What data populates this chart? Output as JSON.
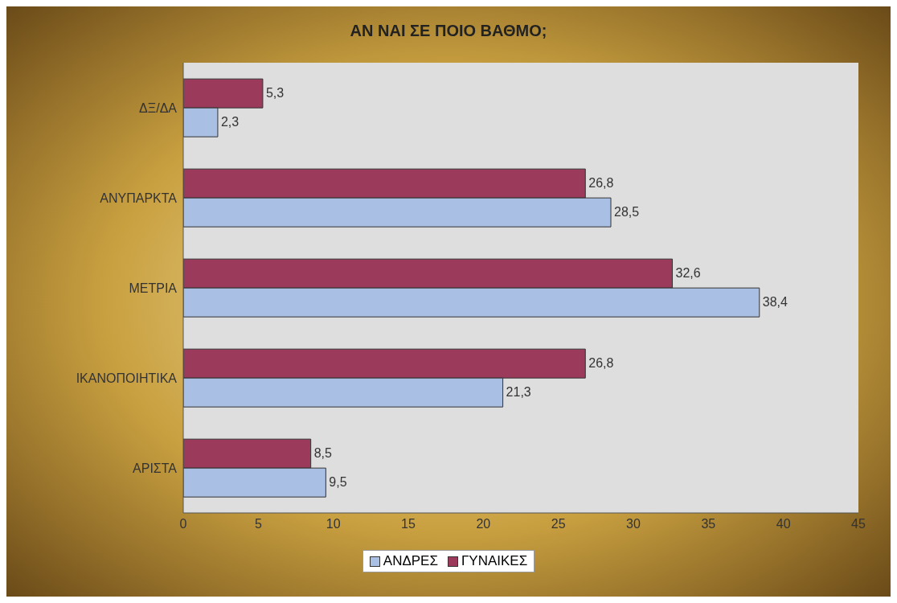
{
  "chart_data": {
    "type": "bar",
    "orientation": "horizontal",
    "title": "ΑΝ ΝΑΙ ΣΕ ΠΟΙΟ ΒΑΘΜΟ;",
    "categories": [
      "ΔΞ/ΔΑ",
      "ΑΝΥΠΑΡΚΤΑ",
      "ΜΕΤΡΙΑ",
      "ΙΚΑΝΟΠΟΙΗΤΙΚΑ",
      "ΑΡΙΣΤΑ"
    ],
    "series": [
      {
        "name": "ΑΝΔΡΕΣ",
        "color": "#a9bfe3",
        "values": [
          2.3,
          28.5,
          38.4,
          21.3,
          9.5
        ],
        "value_labels": [
          "2,3",
          "28,5",
          "38,4",
          "21,3",
          "9,5"
        ]
      },
      {
        "name": "ΓΥΝΑΙΚΕΣ",
        "color": "#9b3a5a",
        "values": [
          5.3,
          26.8,
          32.6,
          26.8,
          8.5
        ],
        "value_labels": [
          "5,3",
          "26,8",
          "32,6",
          "26,8",
          "8,5"
        ]
      }
    ],
    "xlim": [
      0,
      45
    ],
    "xticks": [
      0,
      5,
      10,
      15,
      20,
      25,
      30,
      35,
      40,
      45
    ],
    "grid": false,
    "legend": "bottom"
  }
}
